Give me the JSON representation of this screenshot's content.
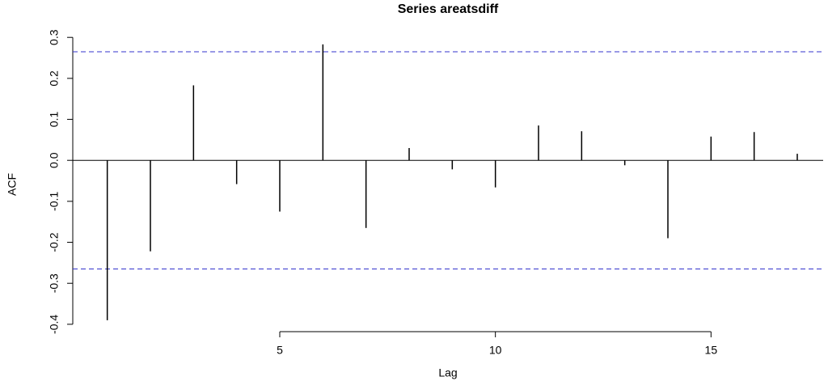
{
  "chart_data": {
    "type": "acf",
    "title": "Series areatsdiff",
    "x_label": "Lag",
    "y_label": "ACF",
    "x": [
      1,
      2,
      3,
      4,
      5,
      6,
      7,
      8,
      9,
      10,
      11,
      12,
      13,
      14,
      15,
      16,
      17
    ],
    "values": [
      -0.39,
      -0.222,
      0.183,
      -0.058,
      -0.125,
      0.283,
      -0.165,
      0.03,
      -0.022,
      -0.066,
      0.085,
      0.071,
      -0.012,
      -0.19,
      0.058,
      0.069,
      0.016
    ],
    "color": "#000000",
    "confidence_limits": [
      0.265,
      -0.265
    ],
    "confidence_color": "#3333cc",
    "xlim": [
      0.2,
      17.6
    ],
    "ylim": [
      -0.418,
      0.332
    ],
    "xticks": [
      5,
      10,
      15
    ],
    "yticks": [
      -0.4,
      -0.3,
      -0.2,
      -0.1,
      {
        "value": 0,
        "label": "0.0"
      },
      0.1,
      0.2,
      0.3
    ]
  }
}
